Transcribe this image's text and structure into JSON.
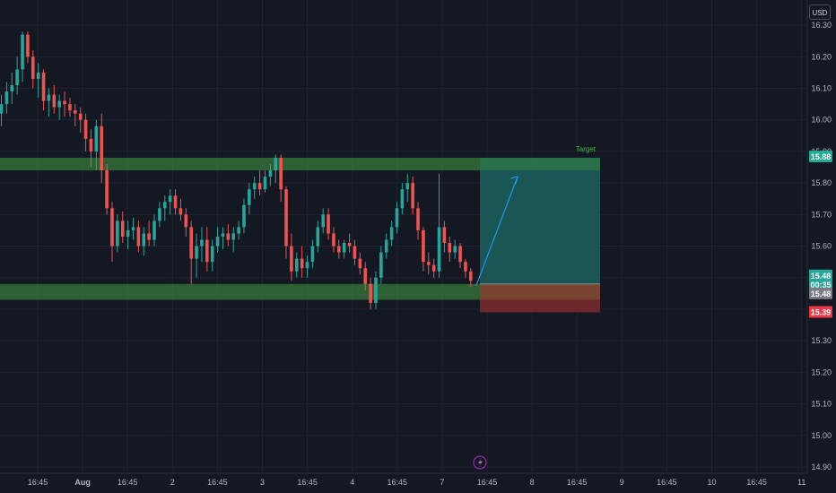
{
  "currency": "USD",
  "chart_data": {
    "type": "candlestick",
    "ylim": [
      14.88,
      16.36
    ],
    "y_ticks": [
      16.3,
      16.2,
      16.1,
      16.0,
      15.9,
      15.8,
      15.7,
      15.6,
      15.5,
      15.4,
      15.3,
      15.2,
      15.1,
      15.0,
      14.9
    ],
    "x_tick_labels": [
      "16:45",
      "Aug",
      "16:45",
      "2",
      "16:45",
      "3",
      "16:45",
      "4",
      "16:45",
      "7",
      "16:45",
      "8",
      "16:45",
      "9",
      "16:45",
      "10",
      "16:45",
      "11"
    ],
    "candles": [
      [
        16.02,
        16.08,
        15.98,
        16.05
      ],
      [
        16.05,
        16.12,
        16.02,
        16.09
      ],
      [
        16.09,
        16.15,
        16.05,
        16.11
      ],
      [
        16.11,
        16.2,
        16.08,
        16.16
      ],
      [
        16.16,
        16.28,
        16.12,
        16.27
      ],
      [
        16.27,
        16.28,
        16.18,
        16.2
      ],
      [
        16.2,
        16.22,
        16.1,
        16.13
      ],
      [
        16.13,
        16.18,
        16.07,
        16.15
      ],
      [
        16.15,
        16.16,
        16.03,
        16.06
      ],
      [
        16.06,
        16.1,
        16.01,
        16.08
      ],
      [
        16.08,
        16.11,
        16.02,
        16.04
      ],
      [
        16.04,
        16.08,
        16.0,
        16.06
      ],
      [
        16.06,
        16.09,
        16.01,
        16.05
      ],
      [
        16.05,
        16.07,
        16.01,
        16.03
      ],
      [
        16.03,
        16.05,
        15.98,
        16.02
      ],
      [
        16.02,
        16.04,
        15.96,
        16.0
      ],
      [
        16.0,
        16.02,
        15.9,
        15.94
      ],
      [
        15.94,
        15.97,
        15.85,
        15.9
      ],
      [
        15.9,
        16.0,
        15.84,
        15.98
      ],
      [
        15.98,
        16.02,
        15.8,
        15.84
      ],
      [
        15.84,
        15.86,
        15.7,
        15.72
      ],
      [
        15.72,
        15.74,
        15.55,
        15.6
      ],
      [
        15.6,
        15.7,
        15.58,
        15.68
      ],
      [
        15.68,
        15.71,
        15.61,
        15.63
      ],
      [
        15.63,
        15.68,
        15.59,
        15.65
      ],
      [
        15.65,
        15.69,
        15.62,
        15.66
      ],
      [
        15.66,
        15.68,
        15.58,
        15.6
      ],
      [
        15.6,
        15.66,
        15.57,
        15.64
      ],
      [
        15.64,
        15.68,
        15.6,
        15.62
      ],
      [
        15.62,
        15.7,
        15.6,
        15.68
      ],
      [
        15.68,
        15.74,
        15.66,
        15.72
      ],
      [
        15.72,
        15.76,
        15.68,
        15.74
      ],
      [
        15.74,
        15.78,
        15.7,
        15.76
      ],
      [
        15.76,
        15.78,
        15.7,
        15.72
      ],
      [
        15.72,
        15.75,
        15.68,
        15.7
      ],
      [
        15.7,
        15.72,
        15.63,
        15.66
      ],
      [
        15.66,
        15.68,
        15.48,
        15.56
      ],
      [
        15.56,
        15.64,
        15.5,
        15.6
      ],
      [
        15.6,
        15.66,
        15.55,
        15.62
      ],
      [
        15.62,
        15.66,
        15.52,
        15.55
      ],
      [
        15.55,
        15.62,
        15.52,
        15.6
      ],
      [
        15.6,
        15.66,
        15.58,
        15.63
      ],
      [
        15.63,
        15.66,
        15.59,
        15.64
      ],
      [
        15.64,
        15.67,
        15.6,
        15.62
      ],
      [
        15.62,
        15.66,
        15.58,
        15.64
      ],
      [
        15.64,
        15.68,
        15.62,
        15.66
      ],
      [
        15.66,
        15.75,
        15.64,
        15.73
      ],
      [
        15.73,
        15.8,
        15.7,
        15.78
      ],
      [
        15.78,
        15.82,
        15.75,
        15.8
      ],
      [
        15.8,
        15.84,
        15.76,
        15.78
      ],
      [
        15.78,
        15.84,
        15.77,
        15.82
      ],
      [
        15.82,
        15.86,
        15.79,
        15.84
      ],
      [
        15.84,
        15.89,
        15.8,
        15.88
      ],
      [
        15.88,
        15.89,
        15.74,
        15.78
      ],
      [
        15.78,
        15.79,
        15.56,
        15.6
      ],
      [
        15.6,
        15.64,
        15.49,
        15.52
      ],
      [
        15.52,
        15.58,
        15.5,
        15.56
      ],
      [
        15.56,
        15.6,
        15.5,
        15.53
      ],
      [
        15.53,
        15.57,
        15.5,
        15.55
      ],
      [
        15.55,
        15.62,
        15.53,
        15.6
      ],
      [
        15.6,
        15.68,
        15.58,
        15.66
      ],
      [
        15.66,
        15.72,
        15.64,
        15.7
      ],
      [
        15.7,
        15.72,
        15.62,
        15.64
      ],
      [
        15.64,
        15.66,
        15.58,
        15.6
      ],
      [
        15.6,
        15.62,
        15.56,
        15.58
      ],
      [
        15.58,
        15.62,
        15.56,
        15.61
      ],
      [
        15.61,
        15.64,
        15.58,
        15.6
      ],
      [
        15.6,
        15.62,
        15.54,
        15.56
      ],
      [
        15.56,
        15.58,
        15.51,
        15.53
      ],
      [
        15.53,
        15.55,
        15.46,
        15.48
      ],
      [
        15.48,
        15.5,
        15.4,
        15.42
      ],
      [
        15.42,
        15.52,
        15.4,
        15.5
      ],
      [
        15.5,
        15.6,
        15.48,
        15.58
      ],
      [
        15.58,
        15.64,
        15.56,
        15.62
      ],
      [
        15.62,
        15.68,
        15.6,
        15.66
      ],
      [
        15.66,
        15.74,
        15.64,
        15.72
      ],
      [
        15.72,
        15.8,
        15.7,
        15.78
      ],
      [
        15.78,
        15.83,
        15.74,
        15.8
      ],
      [
        15.8,
        15.82,
        15.7,
        15.72
      ],
      [
        15.72,
        15.74,
        15.62,
        15.65
      ],
      [
        15.65,
        15.66,
        15.52,
        15.55
      ],
      [
        15.55,
        15.58,
        15.51,
        15.54
      ],
      [
        15.54,
        15.56,
        15.5,
        15.52
      ],
      [
        15.52,
        15.83,
        15.5,
        15.66
      ],
      [
        15.66,
        15.68,
        15.58,
        15.61
      ],
      [
        15.61,
        15.63,
        15.55,
        15.58
      ],
      [
        15.58,
        15.62,
        15.56,
        15.6
      ],
      [
        15.6,
        15.61,
        15.53,
        15.55
      ],
      [
        15.55,
        15.56,
        15.5,
        15.52
      ],
      [
        15.52,
        15.53,
        15.47,
        15.49
      ]
    ],
    "price_levels": [
      {
        "label": "15.88",
        "value": 15.88,
        "color": "#22ab94"
      },
      {
        "label": "15.48",
        "value": 15.48,
        "color": "#26a69a"
      },
      {
        "label": "00:35",
        "value": 15.465,
        "color": "#26a69a"
      },
      {
        "label": "15.48",
        "value": 15.48,
        "color": "#787b86"
      },
      {
        "label": "15.39",
        "value": 15.39,
        "color": "#f23645"
      }
    ],
    "zones": [
      {
        "name": "resistance",
        "y_top": 15.88,
        "y_bottom": 15.84,
        "color": "#3e8e3e"
      },
      {
        "name": "support",
        "y_top": 15.48,
        "y_bottom": 15.43,
        "color": "#3e8e3e"
      }
    ],
    "position": {
      "entry": 15.48,
      "target": 15.88,
      "stop": 15.39,
      "target_label": "Target"
    },
    "colors": {
      "up": "#26a69a",
      "down": "#ef5350",
      "background": "#141823",
      "grid": "#1f2432",
      "profit": "#1b6b66",
      "loss": "#7a2a2e",
      "arrow": "#2196f3"
    }
  }
}
